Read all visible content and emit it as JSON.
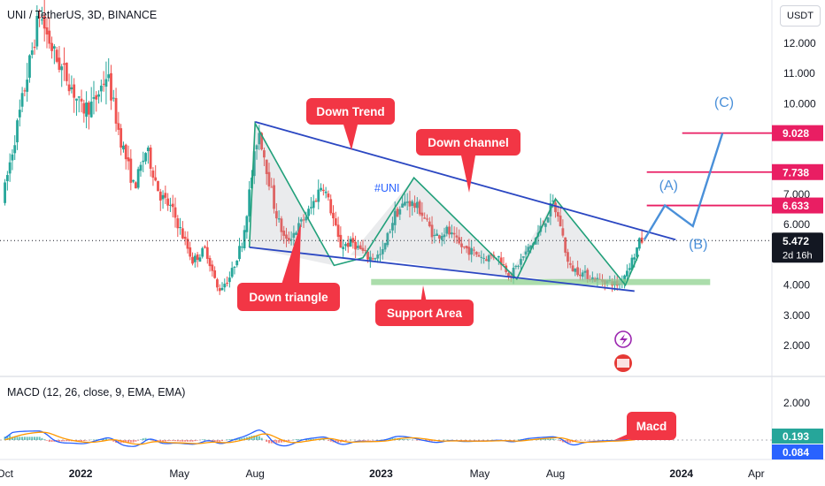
{
  "header": {
    "symbol_line": "UNI / TetherUS, 3D, BINANCE",
    "quote_currency": "USDT",
    "macd_line": "MACD (12, 26, close, 9, EMA, EMA)"
  },
  "chart_data": [
    {
      "type": "candlestick",
      "title": "UNI / TetherUS, 3D, BINANCE",
      "x_range": [
        "2021-09-25",
        "2024-04-20"
      ],
      "ylim": [
        1.2,
        14.5
      ],
      "y_ticks": [
        "12.000",
        "11.000",
        "10.000",
        "7.000",
        "6.000",
        "4.000",
        "3.000",
        "2.000"
      ],
      "price_path": [
        [
          "2021-10-01",
          6.8
        ],
        [
          "2021-11-15",
          13.0
        ],
        [
          "2021-11-25",
          12.2
        ],
        [
          "2021-12-05",
          11.5
        ],
        [
          "2021-12-20",
          10.8
        ],
        [
          "2022-01-05",
          9.8
        ],
        [
          "2022-01-20",
          10.0
        ],
        [
          "2022-02-05",
          11.0
        ],
        [
          "2022-02-20",
          9.0
        ],
        [
          "2022-03-10",
          7.2
        ],
        [
          "2022-03-25",
          8.5
        ],
        [
          "2022-04-10",
          7.0
        ],
        [
          "2022-04-25",
          6.5
        ],
        [
          "2022-05-10",
          5.5
        ],
        [
          "2022-05-20",
          4.8
        ],
        [
          "2022-06-05",
          5.2
        ],
        [
          "2022-06-20",
          3.8
        ],
        [
          "2022-07-05",
          4.3
        ],
        [
          "2022-07-20",
          5.5
        ],
        [
          "2022-08-01",
          7.8
        ],
        [
          "2022-08-08",
          9.2
        ],
        [
          "2022-08-15",
          8.3
        ],
        [
          "2022-08-28",
          6.5
        ],
        [
          "2022-09-10",
          5.4
        ],
        [
          "2022-09-25",
          5.9
        ],
        [
          "2022-10-10",
          6.5
        ],
        [
          "2022-10-25",
          7.4
        ],
        [
          "2022-11-05",
          6.4
        ],
        [
          "2022-11-15",
          5.3
        ],
        [
          "2022-12-01",
          5.4
        ],
        [
          "2022-12-20",
          4.9
        ],
        [
          "2023-01-05",
          5.0
        ],
        [
          "2023-01-20",
          6.3
        ],
        [
          "2023-02-05",
          6.8
        ],
        [
          "2023-02-20",
          6.5
        ],
        [
          "2023-03-10",
          5.6
        ],
        [
          "2023-03-25",
          5.8
        ],
        [
          "2023-04-10",
          5.3
        ],
        [
          "2023-04-25",
          5.1
        ],
        [
          "2023-05-10",
          4.9
        ],
        [
          "2023-05-25",
          5.0
        ],
        [
          "2023-06-10",
          4.3
        ],
        [
          "2023-06-25",
          4.9
        ],
        [
          "2023-07-10",
          5.5
        ],
        [
          "2023-07-25",
          6.3
        ],
        [
          "2023-08-01",
          6.7
        ],
        [
          "2023-08-10",
          6.0
        ],
        [
          "2023-08-20",
          4.6
        ],
        [
          "2023-09-05",
          4.4
        ],
        [
          "2023-09-20",
          4.2
        ],
        [
          "2023-10-10",
          4.1
        ],
        [
          "2023-10-20",
          4.0
        ],
        [
          "2023-10-28",
          4.4
        ],
        [
          "2023-11-08",
          5.0
        ],
        [
          "2023-11-15",
          5.472
        ]
      ],
      "last_price": "5.472",
      "countdown": "2d 16h",
      "target_levels": [
        {
          "value": 9.028,
          "label": "9.028"
        },
        {
          "value": 7.738,
          "label": "7.738"
        },
        {
          "value": 6.633,
          "label": "6.633"
        }
      ],
      "wave_labels": [
        "(A)",
        "(B)",
        "(C)"
      ],
      "wave_path": [
        [
          "2023-11-17",
          5.5
        ],
        [
          "2023-12-12",
          6.633
        ],
        [
          "2024-01-15",
          5.95
        ],
        [
          "2024-02-20",
          9.028
        ]
      ],
      "annotations": [
        {
          "text": "Down Trend",
          "kind": "callout"
        },
        {
          "text": "Down channel",
          "kind": "callout"
        },
        {
          "text": "Down triangle",
          "kind": "callout"
        },
        {
          "text": "Support Area",
          "kind": "callout"
        },
        {
          "text": "#UNI",
          "kind": "label"
        }
      ],
      "trendlines": [
        {
          "name": "down-trend",
          "from": [
            "2022-08-01",
            9.4
          ],
          "to": [
            "2023-12-25",
            5.5
          ]
        },
        {
          "name": "channel-lower",
          "from": [
            "2022-07-25",
            5.25
          ],
          "to": [
            "2023-11-05",
            3.8
          ]
        }
      ],
      "support_area": {
        "from": "2022-12-20",
        "to": "2024-02-05",
        "low": 4.0,
        "high": 4.2
      },
      "x_ticks": [
        "Oct",
        "2022",
        "May",
        "Aug",
        "2023",
        "May",
        "Aug",
        "2024",
        "Apr"
      ],
      "colors": {
        "up": "#26a69a",
        "down": "#ef5350",
        "callout": "#f23645",
        "trend": "#2b47c2",
        "triangle": "#21a07a",
        "wave": "#4a90d9",
        "support": "#8fd18f",
        "target": "#e91e63"
      }
    },
    {
      "type": "macd",
      "title": "MACD (12, 26, close, 9, EMA, EMA)",
      "y_ticks": [
        "2.000"
      ],
      "values": {
        "macd": "0.193",
        "signal": "0.084"
      },
      "annotations": [
        {
          "text": "Macd",
          "kind": "callout"
        }
      ],
      "colors": {
        "macd": "#2962ff",
        "signal": "#ff9800",
        "value_green": "#26a69a",
        "value_blue": "#2962ff"
      }
    }
  ]
}
